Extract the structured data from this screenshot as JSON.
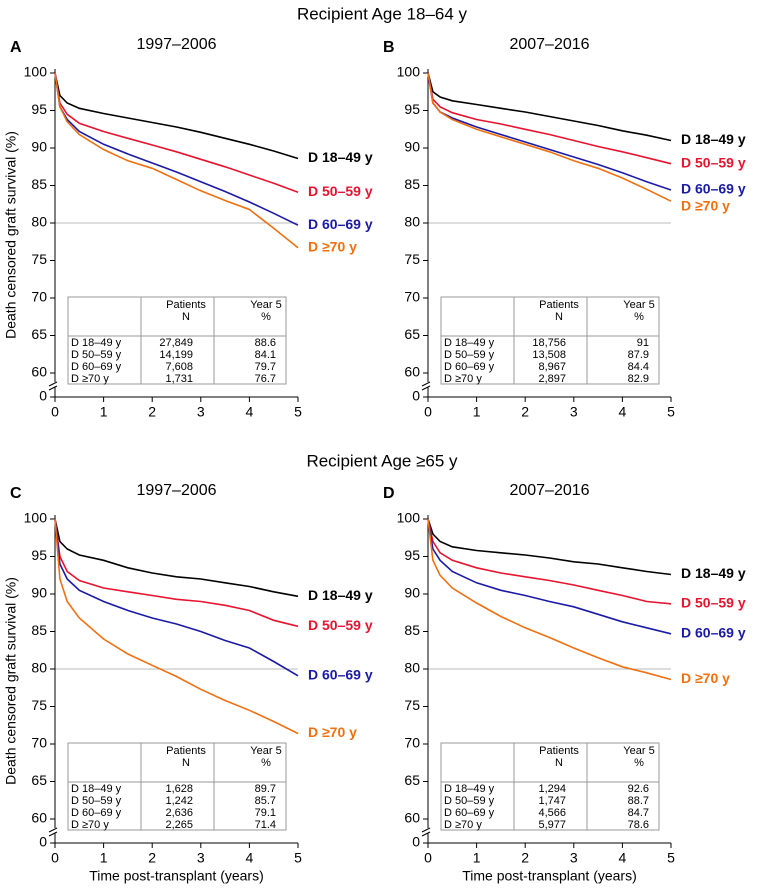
{
  "sections": [
    "Recipient Age 18–64 y",
    "Recipient Age ≥65 y"
  ],
  "chart_data": [
    {
      "type": "line",
      "panel": "A",
      "title": "1997–2006",
      "ylabel": "Death censored graft survival (%)",
      "x": [
        0,
        0.1,
        0.25,
        0.5,
        1,
        1.5,
        2,
        2.5,
        3,
        3.5,
        4,
        4.5,
        5
      ],
      "xlim": [
        0,
        5
      ],
      "xticks": [
        0,
        1,
        2,
        3,
        4,
        5
      ],
      "ylim": [
        0,
        100
      ],
      "ybreak": 58,
      "yticks": [
        0,
        60,
        65,
        70,
        75,
        80,
        85,
        90,
        95,
        100
      ],
      "hline": 80,
      "series": [
        {
          "name": "D 18–49 y",
          "color": "#000000",
          "values": [
            100,
            97,
            96,
            95.3,
            94.6,
            94,
            93.4,
            92.8,
            92.1,
            91.3,
            90.5,
            89.6,
            88.6
          ]
        },
        {
          "name": "D 50–59 y",
          "color": "#e8132f",
          "values": [
            100,
            96,
            94.5,
            93.3,
            92.2,
            91.3,
            90.4,
            89.5,
            88.5,
            87.5,
            86.4,
            85.3,
            84.1
          ]
        },
        {
          "name": "D 60–69 y",
          "color": "#1a1aa6",
          "values": [
            100,
            95.5,
            93.8,
            92.2,
            90.5,
            89.2,
            88,
            86.8,
            85.5,
            84.2,
            82.8,
            81.3,
            79.7
          ]
        },
        {
          "name": "D ≥70 y",
          "color": "#f07010",
          "values": [
            100,
            95.5,
            93.5,
            91.8,
            89.8,
            88.3,
            87.3,
            85.8,
            84.3,
            83,
            81.8,
            79.3,
            76.7
          ]
        }
      ],
      "table": {
        "headers": [
          [
            "Patients",
            "N"
          ],
          [
            "Year 5",
            "%"
          ]
        ],
        "n": [
          "27,849",
          "14,199",
          "7,608",
          "1,731"
        ],
        "year5": [
          88.6,
          84.1,
          79.7,
          76.7
        ]
      }
    },
    {
      "type": "line",
      "panel": "B",
      "title": "2007–2016",
      "x": [
        0,
        0.1,
        0.25,
        0.5,
        1,
        1.5,
        2,
        2.5,
        3,
        3.5,
        4,
        4.5,
        5
      ],
      "xlim": [
        0,
        5
      ],
      "xticks": [
        0,
        1,
        2,
        3,
        4,
        5
      ],
      "ylim": [
        0,
        100
      ],
      "ybreak": 58,
      "yticks": [
        0,
        60,
        65,
        70,
        75,
        80,
        85,
        90,
        95,
        100
      ],
      "hline": 80,
      "series": [
        {
          "name": "D 18–49 y",
          "color": "#000000",
          "values": [
            100,
            97.5,
            96.8,
            96.3,
            95.8,
            95.3,
            94.8,
            94.2,
            93.6,
            93,
            92.3,
            91.7,
            91.0
          ]
        },
        {
          "name": "D 50–59 y",
          "color": "#e8132f",
          "values": [
            100,
            96.5,
            95.5,
            94.7,
            93.8,
            93.2,
            92.5,
            91.8,
            91,
            90.2,
            89.5,
            88.7,
            87.9
          ]
        },
        {
          "name": "D 60–69 y",
          "color": "#1a1aa6",
          "values": [
            100,
            96,
            94.8,
            94,
            92.8,
            91.8,
            90.8,
            89.8,
            88.8,
            87.8,
            86.7,
            85.5,
            84.4
          ]
        },
        {
          "name": "D ≥70 y",
          "color": "#f07010",
          "values": [
            100,
            96,
            94.8,
            93.8,
            92.5,
            91.5,
            90.5,
            89.5,
            88.3,
            87.3,
            86,
            84.5,
            82.9
          ]
        }
      ],
      "table": {
        "headers": [
          [
            "Patients",
            "N"
          ],
          [
            "Year 5",
            "%"
          ]
        ],
        "n": [
          "18,756",
          "13,508",
          "8,967",
          "2,897"
        ],
        "year5": [
          91.0,
          87.9,
          84.4,
          82.9
        ]
      }
    },
    {
      "type": "line",
      "panel": "C",
      "title": "1997–2006",
      "ylabel": "Death censored graft survival (%)",
      "xlabel": "Time post-transplant (years)",
      "x": [
        0,
        0.1,
        0.25,
        0.5,
        1,
        1.5,
        2,
        2.5,
        3,
        3.5,
        4,
        4.5,
        5
      ],
      "xlim": [
        0,
        5
      ],
      "xticks": [
        0,
        1,
        2,
        3,
        4,
        5
      ],
      "ylim": [
        0,
        100
      ],
      "ybreak": 58,
      "yticks": [
        0,
        60,
        65,
        70,
        75,
        80,
        85,
        90,
        95,
        100
      ],
      "hline": 80,
      "series": [
        {
          "name": "D 18–49 y",
          "color": "#000000",
          "values": [
            100,
            97,
            96,
            95.2,
            94.5,
            93.5,
            92.8,
            92.3,
            92,
            91.5,
            91,
            90.3,
            89.7
          ]
        },
        {
          "name": "D 50–59 y",
          "color": "#e8132f",
          "values": [
            100,
            95,
            93,
            91.8,
            90.8,
            90.3,
            89.8,
            89.3,
            89,
            88.5,
            87.8,
            86.5,
            85.7
          ]
        },
        {
          "name": "D 60–69 y",
          "color": "#1a1aa6",
          "values": [
            100,
            94,
            92,
            90.5,
            89,
            87.8,
            86.8,
            86,
            85,
            83.8,
            82.8,
            81,
            79.1
          ]
        },
        {
          "name": "D ≥70 y",
          "color": "#f07010",
          "values": [
            100,
            92,
            89,
            86.8,
            84,
            82,
            80.5,
            79,
            77.3,
            75.8,
            74.5,
            73,
            71.4
          ]
        }
      ],
      "table": {
        "headers": [
          [
            "Patients",
            "N"
          ],
          [
            "Year 5",
            "%"
          ]
        ],
        "n": [
          "1,628",
          "1,242",
          "2,636",
          "2,265"
        ],
        "year5": [
          89.7,
          85.7,
          79.1,
          71.4
        ]
      }
    },
    {
      "type": "line",
      "panel": "D",
      "title": "2007–2016",
      "xlabel": "Time post-transplant (years)",
      "x": [
        0,
        0.1,
        0.25,
        0.5,
        1,
        1.5,
        2,
        2.5,
        3,
        3.5,
        4,
        4.5,
        5
      ],
      "xlim": [
        0,
        5
      ],
      "xticks": [
        0,
        1,
        2,
        3,
        4,
        5
      ],
      "ylim": [
        0,
        100
      ],
      "ybreak": 58,
      "yticks": [
        0,
        60,
        65,
        70,
        75,
        80,
        85,
        90,
        95,
        100
      ],
      "hline": 80,
      "series": [
        {
          "name": "D 18–49 y",
          "color": "#000000",
          "values": [
            100,
            98,
            97,
            96.3,
            95.8,
            95.5,
            95.2,
            94.8,
            94.3,
            94,
            93.5,
            93,
            92.6
          ]
        },
        {
          "name": "D 50–59 y",
          "color": "#e8132f",
          "values": [
            100,
            97,
            95.5,
            94.5,
            93.5,
            92.8,
            92.3,
            91.8,
            91.2,
            90.5,
            89.8,
            89,
            88.7
          ]
        },
        {
          "name": "D 60–69 y",
          "color": "#1a1aa6",
          "values": [
            100,
            96,
            94.5,
            93,
            91.5,
            90.5,
            89.8,
            89,
            88.3,
            87.3,
            86.3,
            85.5,
            84.7
          ]
        },
        {
          "name": "D ≥70 y",
          "color": "#f07010",
          "values": [
            100,
            94.5,
            92.5,
            90.8,
            88.8,
            87,
            85.5,
            84.2,
            82.8,
            81.5,
            80.3,
            79.5,
            78.6
          ]
        }
      ],
      "table": {
        "headers": [
          [
            "Patients",
            "N"
          ],
          [
            "Year 5",
            "%"
          ]
        ],
        "n": [
          "1,294",
          "1,747",
          "4,566",
          "5,977"
        ],
        "year5": [
          92.6,
          88.7,
          84.7,
          78.6
        ]
      }
    }
  ]
}
